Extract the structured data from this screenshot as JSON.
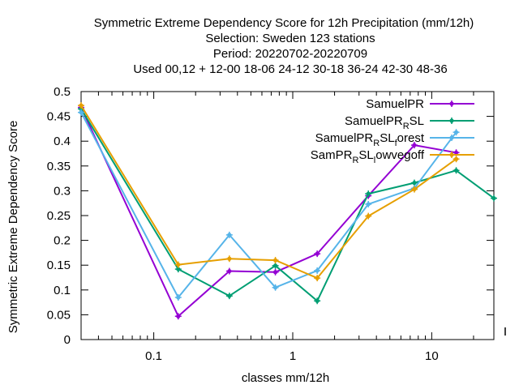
{
  "chart_data": {
    "type": "line",
    "title_lines": [
      "Symmetric Extreme Dependency Score  for 12h Precipitation (mm/12h)",
      "Selection: Sweden    123 stations",
      "Period: 20220702-20220709",
      "Used  00,12  + 12-00 18-06 24-12 30-18 36-24 42-30 48-36"
    ],
    "xlabel": "classes mm/12h",
    "ylabel": "Symmetric Extreme Dependency Score",
    "xscale": "log",
    "xlim": [
      0.03,
      28
    ],
    "ylim": [
      0,
      0.5
    ],
    "x_ticks": [
      "0.1",
      "1",
      "10"
    ],
    "y_ticks": [
      "0",
      "0.05",
      "0.1",
      "0.15",
      "0.2",
      "0.25",
      "0.3",
      "0.35",
      "0.4",
      "0.45",
      "0.5"
    ],
    "grid": false,
    "legend_position": "top-right",
    "series": [
      {
        "name": "SamuelPR",
        "color": "#9400d3",
        "x": [
          0.03,
          0.15,
          0.35,
          0.75,
          1.5,
          3.5,
          7.5,
          15
        ],
        "y": [
          0.468,
          0.047,
          0.138,
          0.136,
          0.173,
          0.29,
          0.392,
          0.377
        ]
      },
      {
        "name": "SamuelPR_RSL",
        "legend_parts": [
          "SamuelPR",
          "R",
          "SL"
        ],
        "color": "#009e73",
        "x": [
          0.03,
          0.15,
          0.35,
          0.75,
          1.5,
          3.5,
          7.5,
          15,
          28
        ],
        "y": [
          0.465,
          0.142,
          0.088,
          0.149,
          0.078,
          0.294,
          0.316,
          0.341,
          0.285
        ]
      },
      {
        "name": "SamuelPR_RSL_forest",
        "legend_parts": [
          "SamuelPR",
          "R",
          "SL",
          "f",
          "orest"
        ],
        "color": "#56b4e9",
        "x": [
          0.03,
          0.15,
          0.35,
          0.75,
          1.5,
          3.5,
          7.5,
          15
        ],
        "y": [
          0.458,
          0.085,
          0.211,
          0.105,
          0.139,
          0.273,
          0.305,
          0.418
        ]
      },
      {
        "name": "SamPR_RSL_lowvegoff",
        "legend_parts": [
          "SamPR",
          "R",
          "SL",
          "l",
          "owvegoff"
        ],
        "color": "#e69f00",
        "x": [
          0.03,
          0.15,
          0.35,
          0.75,
          1.5,
          3.5,
          7.5,
          15
        ],
        "y": [
          0.472,
          0.151,
          0.163,
          0.16,
          0.124,
          0.249,
          0.303,
          0.364
        ]
      }
    ]
  }
}
